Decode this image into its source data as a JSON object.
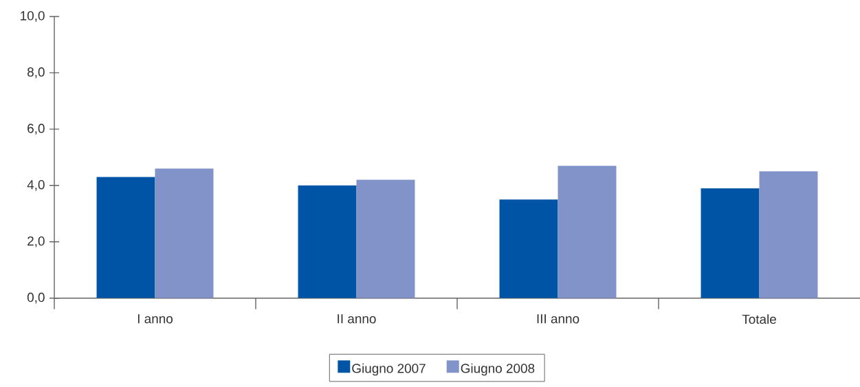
{
  "chart_data": {
    "type": "bar",
    "categories": [
      "I anno",
      "II anno",
      "III anno",
      "Totale"
    ],
    "series": [
      {
        "name": "Giugno 2007",
        "color": "#0054a5",
        "values": [
          4.3,
          4.0,
          3.5,
          3.9
        ]
      },
      {
        "name": "Giugno 2008",
        "color": "#8193c8",
        "values": [
          4.6,
          4.2,
          4.7,
          4.5
        ]
      }
    ],
    "ylim": [
      0,
      10
    ],
    "yticks": [
      {
        "value": 0,
        "label": "0,0"
      },
      {
        "value": 2,
        "label": "2,0"
      },
      {
        "value": 4,
        "label": "4,0"
      },
      {
        "value": 6,
        "label": "6,0"
      },
      {
        "value": 8,
        "label": "8,0"
      },
      {
        "value": 10,
        "label": "10,0"
      }
    ],
    "legend": "bottom"
  }
}
